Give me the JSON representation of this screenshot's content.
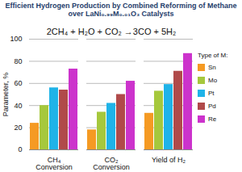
{
  "chart_data": {
    "type": "bar",
    "title": "Efficient Hydrogen Production by Combined Reforming of Methane over LaNi₀.₉₉M₀.₀₁O₃ Catalysts",
    "annotations": [
      "2CH₄ + H₂O + CO₂ →3CO + 5H₂"
    ],
    "categories": [
      "CH₄\nConversion",
      "CO₂\nConversion",
      "Yield of H₂"
    ],
    "series": [
      {
        "name": "Sn",
        "color": "#f59a23",
        "values": [
          24,
          18,
          33
        ]
      },
      {
        "name": "Mo",
        "color": "#a6c83c",
        "values": [
          40,
          34,
          53
        ]
      },
      {
        "name": "Pt",
        "color": "#1fb3e8",
        "values": [
          56,
          42,
          59
        ]
      },
      {
        "name": "Pd",
        "color": "#b04a4a",
        "values": [
          54,
          50,
          71
        ]
      },
      {
        "name": "Re",
        "color": "#cc33cc",
        "values": [
          73,
          62,
          87
        ]
      }
    ],
    "ylabel": "Parameter, %",
    "legend": "right",
    "legend_title": "Type of M:",
    "ylim": [
      0,
      100
    ],
    "yticks": [
      0,
      20,
      40,
      60,
      80,
      100
    ],
    "grid": true
  }
}
